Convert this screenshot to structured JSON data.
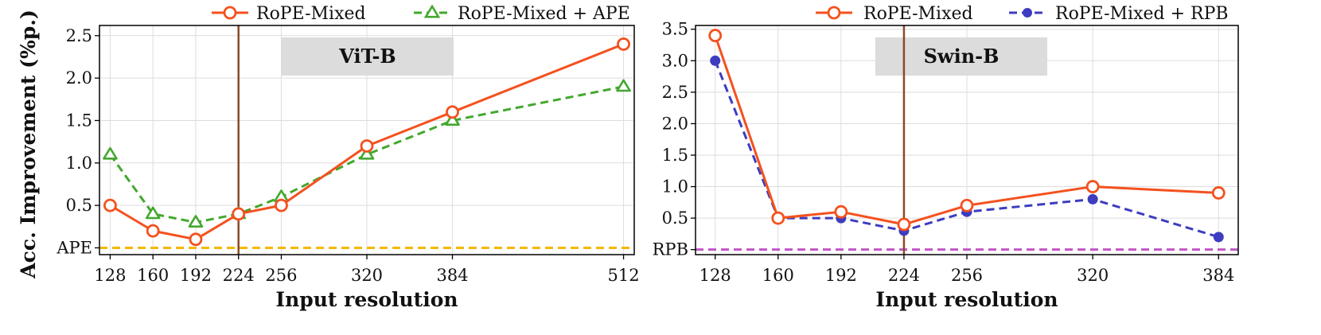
{
  "chart_data": [
    {
      "type": "line",
      "title": "ViT-B",
      "xlabel": "Input resolution",
      "ylabel": "Acc. Improvement (%p.)",
      "x": [
        128,
        160,
        192,
        224,
        256,
        320,
        384,
        512
      ],
      "xticks": [
        "128",
        "160",
        "192",
        "224",
        "256",
        "320",
        "384",
        "512"
      ],
      "xlim": [
        120,
        520
      ],
      "ylim": [
        -0.08,
        2.62
      ],
      "yticks": [
        "0.5",
        "1.0",
        "1.5",
        "2.0",
        "2.5"
      ],
      "baseline_label": "APE",
      "baseline_color": "#f5b800",
      "reference_x": 224,
      "grid": true,
      "legend_position": "top",
      "series": [
        {
          "name": "RoPE-Mixed",
          "values": [
            0.5,
            0.2,
            0.1,
            0.4,
            0.5,
            1.2,
            1.6,
            2.4
          ],
          "color": "#f4511e",
          "marker": "circle",
          "dash": "solid"
        },
        {
          "name": "RoPE-Mixed + APE",
          "values": [
            1.1,
            0.4,
            0.3,
            0.4,
            0.6,
            1.1,
            1.5,
            1.9
          ],
          "color": "#43a82e",
          "marker": "triangle",
          "dash": "dashed"
        }
      ]
    },
    {
      "type": "line",
      "title": "Swin-B",
      "xlabel": "Input resolution",
      "ylabel": "",
      "x": [
        128,
        160,
        192,
        224,
        256,
        320,
        384
      ],
      "xticks": [
        "128",
        "160",
        "192",
        "224",
        "256",
        "320",
        "384"
      ],
      "xlim": [
        118,
        394
      ],
      "ylim": [
        -0.08,
        3.56
      ],
      "yticks": [
        "0.5",
        "1.0",
        "1.5",
        "2.0",
        "2.5",
        "3.0",
        "3.5"
      ],
      "baseline_label": "RPB",
      "baseline_color": "#c255c7",
      "reference_x": 224,
      "grid": true,
      "legend_position": "top",
      "series": [
        {
          "name": "RoPE-Mixed",
          "values": [
            3.4,
            0.5,
            0.6,
            0.4,
            0.7,
            1.0,
            0.9
          ],
          "color": "#f4511e",
          "marker": "circle",
          "dash": "solid"
        },
        {
          "name": "RoPE-Mixed + RPB",
          "values": [
            3.0,
            0.5,
            0.5,
            0.3,
            0.6,
            0.8,
            0.2
          ],
          "color": "#3d3dbf",
          "marker": "dot",
          "dash": "dashed"
        }
      ]
    }
  ]
}
